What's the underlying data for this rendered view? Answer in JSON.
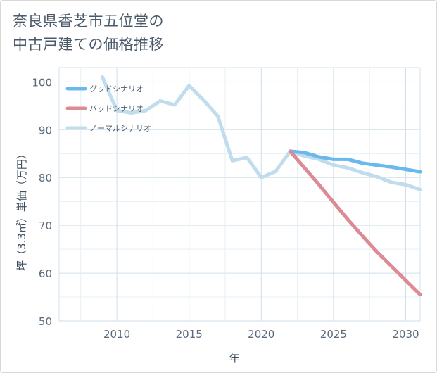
{
  "title_line1": "奈良県香芝市五位堂の",
  "title_line2": "中古戸建ての価格推移",
  "chart_data": {
    "type": "line",
    "title": "奈良県香芝市五位堂の中古戸建ての価格推移",
    "xlabel": "年",
    "ylabel": "坪（3.3㎡）単価（万円）",
    "xlim": [
      2006,
      2031
    ],
    "ylim": [
      50,
      103
    ],
    "xticks": [
      2010,
      2015,
      2020,
      2025,
      2030
    ],
    "yticks": [
      50,
      60,
      70,
      80,
      90,
      100
    ],
    "series": [
      {
        "name": "グッドシナリオ",
        "color": "#6bb8ee",
        "x": [
          2022,
          2023,
          2024,
          2025,
          2026,
          2027,
          2028,
          2029,
          2030,
          2031
        ],
        "y": [
          85.5,
          85.2,
          84.3,
          83.8,
          83.8,
          83,
          82.6,
          82.2,
          81.7,
          81.2
        ]
      },
      {
        "name": "バッドシナリオ",
        "color": "#dc8a94",
        "x": [
          2022,
          2023,
          2024,
          2025,
          2026,
          2027,
          2028,
          2029,
          2030,
          2031
        ],
        "y": [
          85.5,
          82,
          78.5,
          74.8,
          71.2,
          67.8,
          64.5,
          61.5,
          58.5,
          55.5
        ]
      },
      {
        "name": "ノーマルシナリオ",
        "color": "#c0dced",
        "x": [
          2009,
          2010,
          2011,
          2012,
          2013,
          2014,
          2015,
          2016,
          2017,
          2018,
          2019,
          2020,
          2021,
          2022,
          2023,
          2024,
          2025,
          2026,
          2027,
          2028,
          2029,
          2030,
          2031
        ],
        "y": [
          101,
          94,
          93.5,
          94,
          96,
          95.2,
          99.2,
          96.2,
          92.8,
          83.5,
          84.2,
          80,
          81.3,
          85.5,
          84.5,
          83.8,
          82.6,
          82,
          81,
          80.2,
          79,
          78.5,
          77.5
        ]
      }
    ]
  }
}
